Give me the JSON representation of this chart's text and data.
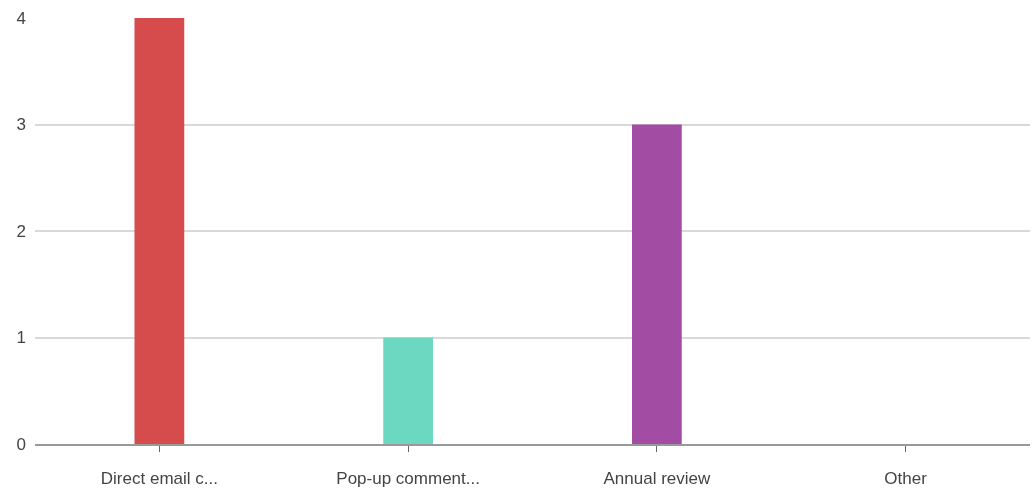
{
  "chart_data": {
    "type": "bar",
    "categories": [
      "Direct email c...",
      "Pop-up comment...",
      "Annual review",
      "Other"
    ],
    "values": [
      4,
      1,
      3,
      0
    ],
    "colors": [
      "#d64b4b",
      "#6dd8c2",
      "#a24ca3",
      "#cccccc"
    ],
    "ylim": [
      0,
      4
    ],
    "yticks": [
      0,
      1,
      2,
      3,
      4
    ],
    "grid": "y"
  }
}
